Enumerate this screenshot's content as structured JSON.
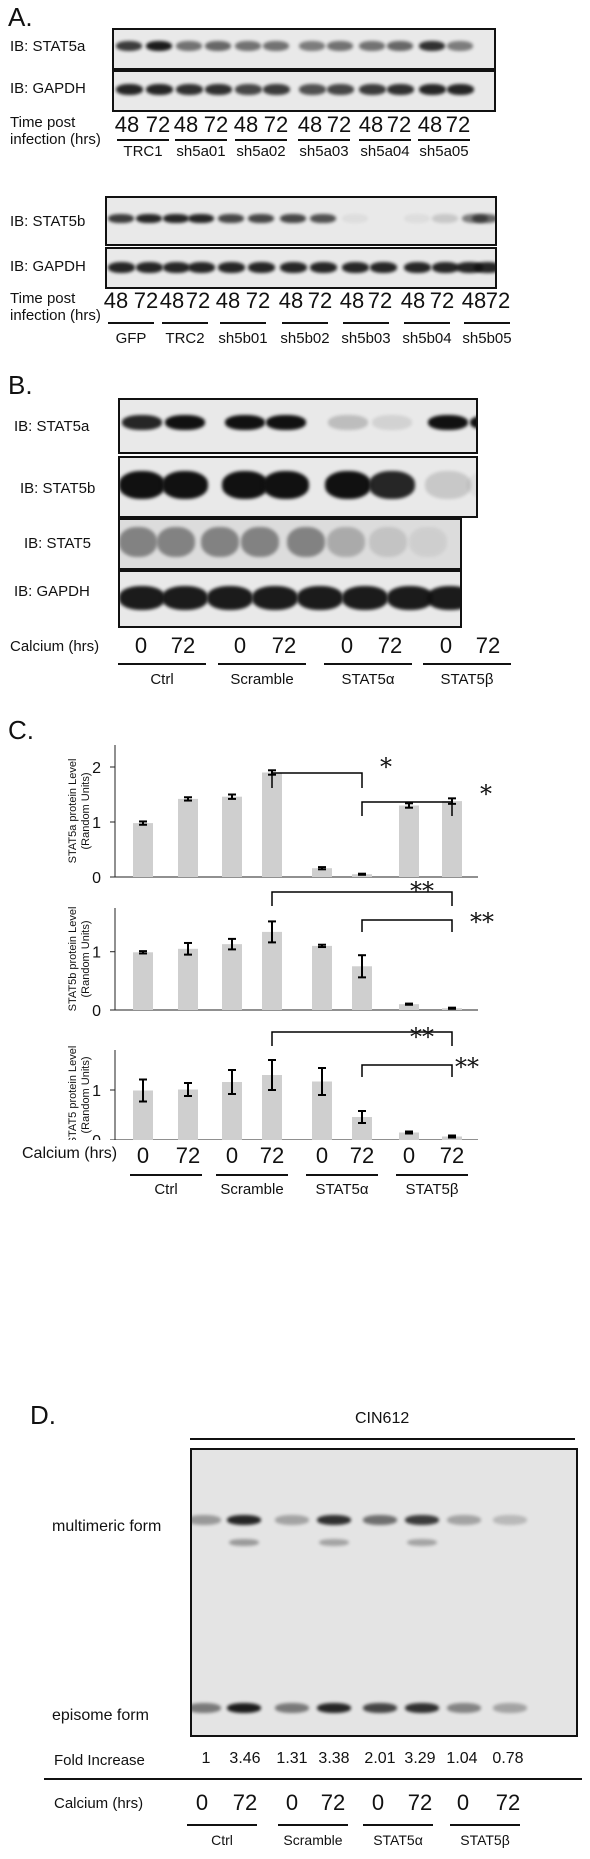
{
  "panel_a": {
    "letter": "A.",
    "blot1_label": "IB: STAT5a",
    "blot2_label": "IB: GAPDH",
    "blot3_label": "IB: STAT5b",
    "blot4_label": "IB: GAPDH",
    "time_label_line1": "Time post",
    "time_label_line2": "infection (hrs)",
    "time_points": [
      "48",
      "72",
      "48",
      "72",
      "48",
      "72",
      "48",
      "72",
      "48",
      "72",
      "48",
      "72"
    ],
    "groups1": [
      "TRC1",
      "sh5a01",
      "sh5a02",
      "sh5a03",
      "sh5a04",
      "sh5a05"
    ],
    "time_points2": [
      "48",
      "72",
      "48",
      "72",
      "48",
      "72",
      "48",
      "72",
      "48",
      "72",
      "48",
      "72",
      "48",
      "72"
    ],
    "groups2": [
      "GFP",
      "TRC2",
      "sh5b01",
      "sh5b02",
      "sh5b03",
      "sh5b04",
      "sh5b05"
    ]
  },
  "panel_b": {
    "letter": "B.",
    "blot_labels": [
      "IB: STAT5a",
      "IB: STAT5b",
      "IB: STAT5",
      "IB: GAPDH"
    ],
    "calcium_label": "Calcium (hrs)",
    "time_points": [
      "0",
      "72",
      "0",
      "72",
      "0",
      "72",
      "0",
      "72"
    ],
    "groups": [
      "Ctrl",
      "Scramble",
      "STAT5α",
      "STAT5β"
    ]
  },
  "panel_c": {
    "letter": "C.",
    "calcium_label": "Calcium (hrs)",
    "time_points": [
      "0",
      "72",
      "0",
      "72",
      "0",
      "72",
      "0",
      "72"
    ],
    "groups": [
      "Ctrl",
      "Scramble",
      "STAT5α",
      "STAT5β"
    ],
    "sig1": "*",
    "sig2": "*",
    "sig3": "**",
    "sig4": "**",
    "sig5": "**",
    "sig6": "**"
  },
  "chart_data": [
    {
      "type": "bar",
      "ylabel": "STAT5a protein Level (Random Units)",
      "categories": [
        "Ctrl 0",
        "Ctrl 72",
        "Scramble 0",
        "Scramble 72",
        "STAT5α 0",
        "STAT5α 72",
        "STAT5β 0",
        "STAT5β 72"
      ],
      "values": [
        0.98,
        1.42,
        1.46,
        1.9,
        0.16,
        0.05,
        1.3,
        1.38
      ],
      "errors": [
        0.03,
        0.03,
        0.04,
        0.04,
        0.02,
        0.01,
        0.04,
        0.05
      ],
      "ylim": [
        0,
        2.4
      ],
      "yticks": [
        0,
        1,
        2
      ]
    },
    {
      "type": "bar",
      "ylabel": "STAT5b protein Level (Random Units)",
      "categories": [
        "Ctrl 0",
        "Ctrl 72",
        "Scramble 0",
        "Scramble 72",
        "STAT5α 0",
        "STAT5α 72",
        "STAT5β 0",
        "STAT5β 72"
      ],
      "values": [
        0.99,
        1.05,
        1.13,
        1.34,
        1.1,
        0.75,
        0.1,
        0.03
      ],
      "errors": [
        0.02,
        0.1,
        0.09,
        0.18,
        0.02,
        0.19,
        0.01,
        0.01
      ],
      "ylim": [
        0,
        1.75
      ],
      "yticks": [
        0,
        1
      ]
    },
    {
      "type": "bar",
      "ylabel": "STAT5 protein Level (Random Units)",
      "categories": [
        "Ctrl 0",
        "Ctrl 72",
        "Scramble 0",
        "Scramble 72",
        "STAT5α 0",
        "STAT5α 72",
        "STAT5β 0",
        "STAT5β 72"
      ],
      "values": [
        0.99,
        1.01,
        1.16,
        1.3,
        1.17,
        0.46,
        0.15,
        0.07
      ],
      "errors": [
        0.22,
        0.13,
        0.24,
        0.3,
        0.27,
        0.12,
        0.02,
        0.02
      ],
      "ylim": [
        0,
        1.8
      ],
      "yticks": [
        0,
        1
      ]
    }
  ],
  "panel_d": {
    "letter": "D.",
    "cell_line": "CIN612",
    "multimeric_label": "multimeric form",
    "episome_label": "episome form",
    "fold_label": "Fold Increase",
    "fold_values": [
      "1",
      "3.46",
      "1.31",
      "3.38",
      "2.01",
      "3.29",
      "1.04",
      "0.78"
    ],
    "calcium_label": "Calcium (hrs)",
    "time_points": [
      "0",
      "72",
      "0",
      "72",
      "0",
      "72",
      "0",
      "72"
    ],
    "groups": [
      "Ctrl",
      "Scramble",
      "STAT5α",
      "STAT5β"
    ]
  },
  "colors": {
    "bar_fill": "#cfcfcf",
    "ink": "#111111"
  }
}
